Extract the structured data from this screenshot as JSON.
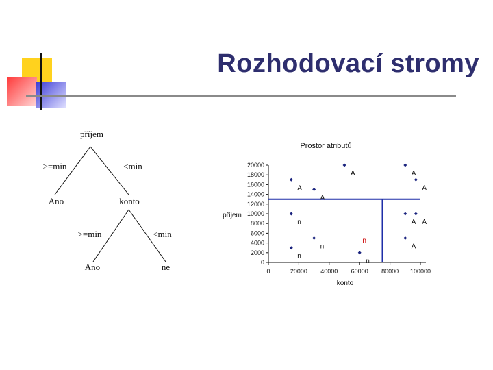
{
  "slide": {
    "title": "Rozhodovací stromy"
  },
  "tree": {
    "root": "příjem",
    "root_left_edge": ">=min",
    "root_right_edge": "<min",
    "left_leaf": "Ano",
    "right_node": "konto",
    "node_left_edge": ">=min",
    "node_right_edge": "<min",
    "node_left_leaf": "Ano",
    "node_right_leaf": "ne"
  },
  "chart_data": {
    "type": "scatter",
    "title": "Prostor atributů",
    "xlabel": "konto",
    "ylabel": "příjem",
    "xlim": [
      0,
      100000
    ],
    "ylim": [
      0,
      20000
    ],
    "xticks": [
      "0",
      "20000",
      "40000",
      "60000",
      "80000",
      "100000"
    ],
    "yticks": [
      "0",
      "2000",
      "4000",
      "6000",
      "8000",
      "10000",
      "12000",
      "14000",
      "16000",
      "18000",
      "20000"
    ],
    "split_lines": {
      "horizontal_y": 13000,
      "vertical_x": 75000,
      "upper_x_range": [
        0,
        100000
      ],
      "vertical_y_range": [
        0,
        13000
      ]
    },
    "points": [
      {
        "x": 15000,
        "y": 17000,
        "label": "A"
      },
      {
        "x": 30000,
        "y": 15000,
        "label": "A"
      },
      {
        "x": 50000,
        "y": 20000,
        "label": "A"
      },
      {
        "x": 90000,
        "y": 20000,
        "label": "A"
      },
      {
        "x": 97000,
        "y": 17000,
        "label": "A"
      },
      {
        "x": 15000,
        "y": 10000,
        "label": "n"
      },
      {
        "x": 30000,
        "y": 5000,
        "label": "n"
      },
      {
        "x": 15000,
        "y": 3000,
        "label": "n"
      },
      {
        "x": 60000,
        "y": 2000,
        "label": "n"
      },
      {
        "x": 90000,
        "y": 10000,
        "label": "A"
      },
      {
        "x": 97000,
        "y": 10000,
        "label": "A"
      },
      {
        "x": 90000,
        "y": 5000,
        "label": "A"
      }
    ],
    "highlight_label": {
      "text": "n",
      "x": 70000,
      "y": 4500
    },
    "colors": {
      "points": "#1a237e",
      "split_lines": "#1f2fa8",
      "highlight": "#cc0000",
      "axis": "#111111"
    }
  }
}
